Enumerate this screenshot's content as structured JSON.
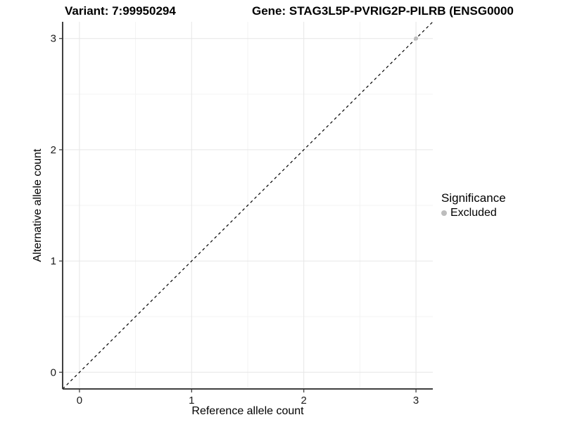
{
  "chart_data": {
    "type": "scatter",
    "title_variant": "Variant: 7:99950294",
    "title_gene": "Gene: STAG3L5P-PVRIG2P-PILRB (ENSG0000",
    "xlabel": "Reference allele count",
    "ylabel": "Alternative allele count",
    "xlim": [
      -0.15,
      3.15
    ],
    "ylim": [
      -0.15,
      3.15
    ],
    "x_ticks": [
      0,
      1,
      2,
      3
    ],
    "y_ticks": [
      0,
      1,
      2,
      3
    ],
    "x_tick_labels": [
      "0",
      "1",
      "2",
      "3"
    ],
    "y_tick_labels": [
      "0",
      "1",
      "2",
      "3"
    ],
    "x_minor": [
      0.5,
      1.5,
      2.5
    ],
    "y_minor": [
      0.5,
      1.5,
      2.5
    ],
    "grid": true,
    "abline": {
      "slope": 1,
      "intercept": 0,
      "style": "dashed",
      "color": "#000000"
    },
    "points": [
      {
        "x": 3,
        "y": 3,
        "significance": "Excluded",
        "color": "#bdbdbd",
        "radius": 3
      }
    ],
    "legend": {
      "position": "right",
      "title": "Significance",
      "items": [
        {
          "label": "Excluded",
          "color": "#bdbdbd"
        }
      ]
    },
    "colors": {
      "background": "#ffffff",
      "grid_major": "#e6e6e6",
      "grid_minor": "#f3f3f3",
      "axis_line": "#404040",
      "tick_mark": "#333333",
      "tick_label": "#1a1a1a",
      "point_excluded": "#bdbdbd",
      "dashed_line": "#000000"
    }
  }
}
